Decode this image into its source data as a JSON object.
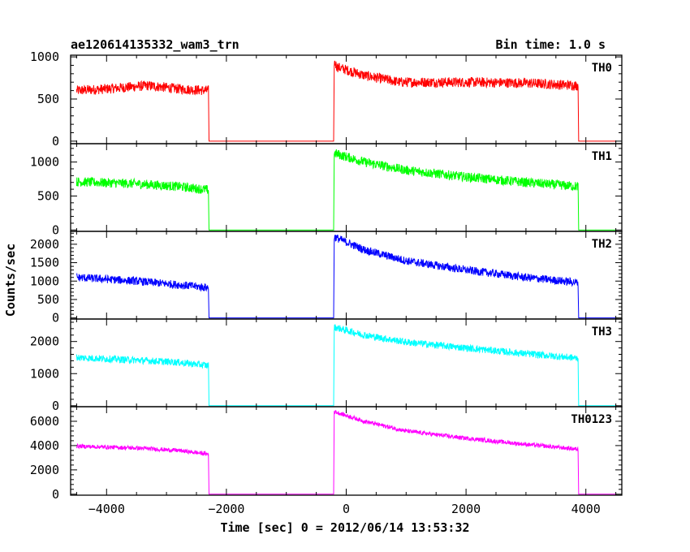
{
  "header": {
    "title": "ae120614135332_wam3_trn",
    "bin_time": "Bin time: 1.0 s"
  },
  "axes": {
    "xlabel": "Time [sec] 0 = 2012/06/14 13:53:32",
    "ylabel": "Counts/sec",
    "xlim": [
      -4600,
      4600
    ],
    "xticks": [
      -4000,
      -2000,
      0,
      2000,
      4000
    ],
    "xtick_labels": [
      "−4000",
      "−2000",
      "0",
      "2000",
      "4000"
    ]
  },
  "chart_data": {
    "type": "line",
    "title": "ae120614135332_wam3_trn",
    "xlabel": "Time [sec] 0 = 2012/06/14 13:53:32",
    "ylabel": "Counts/sec",
    "x_range": [
      -4600,
      4600
    ],
    "series": [
      {
        "name": "TH0",
        "color": "#ff0000",
        "ylim": [
          -30,
          1020
        ],
        "yticks": [
          0,
          500,
          1000
        ],
        "ytick_labels": [
          "0",
          "500",
          "1000"
        ],
        "noise": 60,
        "segments": [
          {
            "x": [
              -4500,
              -4000,
              -3300,
              -2800,
              -2300
            ],
            "y": [
              600,
              620,
              660,
              620,
              600
            ]
          },
          {
            "x": [
              -2290,
              -210
            ],
            "y": [
              0,
              0
            ],
            "gap": true
          },
          {
            "x": [
              -200,
              -150,
              300,
              900,
              2000,
              3000,
              3870
            ],
            "y": [
              940,
              880,
              780,
              700,
              700,
              690,
              660
            ]
          },
          {
            "x": [
              3880,
              4500
            ],
            "y": [
              0,
              0
            ],
            "gap": true
          }
        ]
      },
      {
        "name": "TH1",
        "color": "#00ff00",
        "ylim": [
          -20,
          1270
        ],
        "yticks": [
          0,
          500,
          1000
        ],
        "ytick_labels": [
          "0",
          "500",
          "1000"
        ],
        "noise": 70,
        "segments": [
          {
            "x": [
              -4500,
              -3500,
              -2800,
              -2300
            ],
            "y": [
              710,
              680,
              640,
              590
            ]
          },
          {
            "x": [
              -2290,
              -210
            ],
            "y": [
              0,
              0
            ],
            "gap": true
          },
          {
            "x": [
              -200,
              300,
              1000,
              2000,
              3000,
              3870
            ],
            "y": [
              1130,
              1000,
              880,
              780,
              700,
              640
            ]
          },
          {
            "x": [
              3880,
              4500
            ],
            "y": [
              0,
              0
            ],
            "gap": true
          }
        ]
      },
      {
        "name": "TH2",
        "color": "#0000ff",
        "ylim": [
          -30,
          2350
        ],
        "yticks": [
          0,
          500,
          1000,
          1500,
          2000
        ],
        "ytick_labels": [
          "0",
          "500",
          "1000",
          "1500",
          "2000"
        ],
        "noise": 110,
        "segments": [
          {
            "x": [
              -4500,
              -3500,
              -2800,
              -2300
            ],
            "y": [
              1100,
              1000,
              900,
              820
            ]
          },
          {
            "x": [
              -2290,
              -210
            ],
            "y": [
              0,
              0
            ],
            "gap": true
          },
          {
            "x": [
              -200,
              300,
              1000,
              2000,
              3000,
              3870
            ],
            "y": [
              2200,
              1850,
              1550,
              1300,
              1100,
              960
            ]
          },
          {
            "x": [
              3880,
              4500
            ],
            "y": [
              0,
              0
            ],
            "gap": true
          }
        ]
      },
      {
        "name": "TH3",
        "color": "#00ffff",
        "ylim": [
          -30,
          2700
        ],
        "yticks": [
          0,
          1000,
          2000
        ],
        "ytick_labels": [
          "0",
          "1000",
          "2000"
        ],
        "noise": 110,
        "segments": [
          {
            "x": [
              -4500,
              -3500,
              -2800,
              -2300
            ],
            "y": [
              1500,
              1420,
              1350,
              1250
            ]
          },
          {
            "x": [
              -2290,
              -210
            ],
            "y": [
              0,
              0
            ],
            "gap": true
          },
          {
            "x": [
              -200,
              300,
              1000,
              2000,
              3000,
              3870
            ],
            "y": [
              2450,
              2200,
              1980,
              1800,
              1620,
              1480
            ]
          },
          {
            "x": [
              3880,
              4500
            ],
            "y": [
              0,
              0
            ],
            "gap": true
          }
        ]
      },
      {
        "name": "TH0123",
        "color": "#ff00ff",
        "ylim": [
          -80,
          7200
        ],
        "yticks": [
          0,
          2000,
          4000,
          6000
        ],
        "ytick_labels": [
          "0",
          "2000",
          "4000",
          "6000"
        ],
        "noise": 170,
        "segments": [
          {
            "x": [
              -4500,
              -3500,
              -2800,
              -2300
            ],
            "y": [
              3950,
              3800,
              3600,
              3300
            ]
          },
          {
            "x": [
              -2290,
              -210
            ],
            "y": [
              0,
              0
            ],
            "gap": true
          },
          {
            "x": [
              -200,
              300,
              1000,
              2000,
              3000,
              3870
            ],
            "y": [
              6800,
              6000,
              5200,
              4600,
              4100,
              3700
            ]
          },
          {
            "x": [
              3880,
              4500
            ],
            "y": [
              0,
              0
            ],
            "gap": true
          }
        ]
      }
    ]
  }
}
